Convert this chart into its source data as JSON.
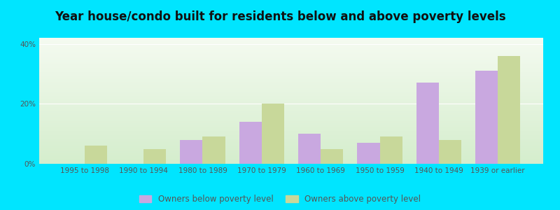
{
  "title": "Year house/condo built for residents below and above poverty levels",
  "categories": [
    "1995 to 1998",
    "1990 to 1994",
    "1980 to 1989",
    "1970 to 1979",
    "1960 to 1969",
    "1950 to 1959",
    "1940 to 1949",
    "1939 or earlier"
  ],
  "below_poverty": [
    0,
    0,
    8,
    14,
    10,
    7,
    27,
    31
  ],
  "above_poverty": [
    6,
    5,
    9,
    20,
    5,
    9,
    8,
    36
  ],
  "below_color": "#c9a8e0",
  "above_color": "#c8d89a",
  "ylim": [
    0,
    42
  ],
  "yticks": [
    0,
    20,
    40
  ],
  "ytick_labels": [
    "0%",
    "20%",
    "40%"
  ],
  "bar_width": 0.38,
  "background_top": "#f4faf0",
  "background_bottom": "#d4edcc",
  "outer_bg": "#00e5ff",
  "legend_below_label": "Owners below poverty level",
  "legend_above_label": "Owners above poverty level",
  "title_fontsize": 12,
  "axis_fontsize": 7.5,
  "legend_fontsize": 8.5
}
